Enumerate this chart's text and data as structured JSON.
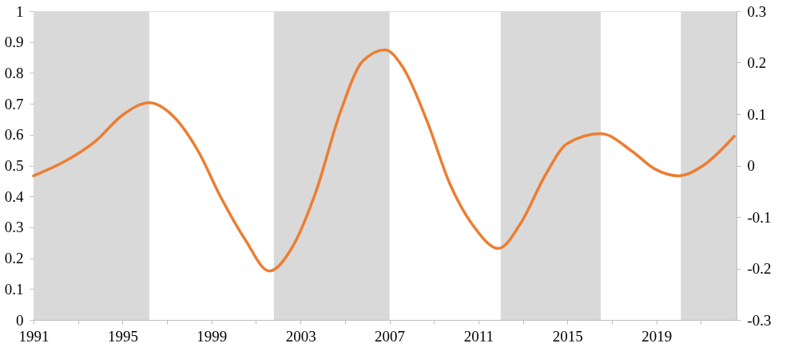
{
  "chart_data": {
    "type": "line",
    "xlim": [
      1991,
      2022.6
    ],
    "xticks": [
      1991,
      {
        "value": 1993,
        "label": null
      },
      1995,
      {
        "value": 1997,
        "label": null
      },
      1999,
      {
        "value": 2001,
        "label": null
      },
      2003,
      {
        "value": 2005,
        "label": null
      },
      2007,
      {
        "value": 2009,
        "label": null
      },
      2011,
      {
        "value": 2013,
        "label": null
      },
      2015,
      {
        "value": 2017,
        "label": null
      },
      2019,
      {
        "value": 2021,
        "label": null
      }
    ],
    "ylim": [
      0,
      1
    ],
    "yticks": [
      0,
      0.1,
      0.2,
      0.3,
      0.4,
      0.5,
      0.6,
      0.7,
      0.8,
      0.9,
      1
    ],
    "y2lim": [
      -0.3,
      0.3
    ],
    "y2ticks": [
      -0.3,
      -0.2,
      -0.1,
      0,
      0.1,
      0.2,
      0.3
    ],
    "grid": false,
    "marker": "none",
    "line_style": "solid",
    "bands": [
      {
        "axis": "x",
        "from": 1991,
        "to": 1996.2,
        "color": "#d9d9d9"
      },
      {
        "axis": "x",
        "from": 2001.8,
        "to": 2007.0,
        "color": "#d9d9d9"
      },
      {
        "axis": "x",
        "from": 2012.0,
        "to": 2016.5,
        "color": "#d9d9d9"
      },
      {
        "axis": "x",
        "from": 2020.1,
        "to": 2022.6,
        "color": "#d9d9d9"
      }
    ],
    "series": [
      {
        "color": "#ed7d31",
        "axis": "y2",
        "x": [
          1991,
          1992.4,
          1993.8,
          1995.0,
          1996.2,
          1997.3,
          1998.4,
          1999.4,
          2000.5,
          2001.6,
          2002.6,
          2003.7,
          2004.8,
          2005.8,
          2006.8,
          2007.6,
          2008.7,
          2009.7,
          2010.8,
          2011.9,
          2012.9,
          2014.0,
          2015.0,
          2016.5,
          2017.9,
          2018.9,
          2020.0,
          2021.1,
          2022.5
        ],
        "values": [
          -0.02,
          0.008,
          0.048,
          0.098,
          0.122,
          0.095,
          0.028,
          -0.06,
          -0.143,
          -0.205,
          -0.161,
          -0.05,
          0.105,
          0.203,
          0.225,
          0.191,
          0.085,
          -0.034,
          -0.119,
          -0.161,
          -0.112,
          -0.019,
          0.043,
          0.062,
          0.028,
          -0.006,
          -0.02,
          0.0,
          0.057
        ]
      }
    ]
  }
}
